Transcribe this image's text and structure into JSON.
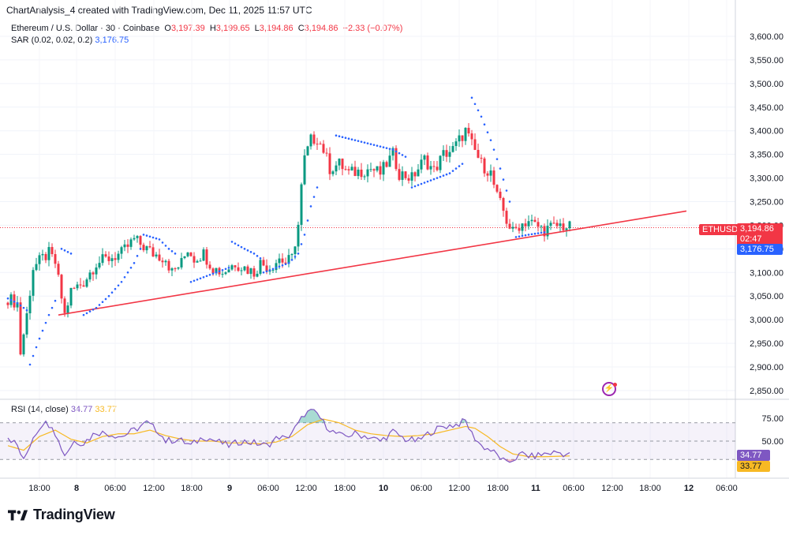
{
  "caption": "ChartAnalysis_4 created with TradingView.com, Dec 11, 2025 11:57 UTC",
  "legend": {
    "symbol": "Ethereum / U.S. Dollar · 30 · Coinbase",
    "open_label": "O",
    "open": "3,197.39",
    "high_label": "H",
    "high": "3,199.65",
    "low_label": "L",
    "low": "3,194.86",
    "close_label": "C",
    "close": "3,194.86",
    "change": "−2.33 (−0.07%)",
    "sar_label": "SAR (0.02, 0.02, 0.2)",
    "sar_value": "3,176.75"
  },
  "tags": {
    "symbol": "ETHUSD",
    "price": "3,194.86",
    "countdown": "02:47",
    "sar": "3,176.75",
    "rsi": "34.77",
    "rsi_ma": "33.77"
  },
  "rsi_legend": {
    "label": "RSI (14, close)",
    "value": "34.77",
    "ma_value": "33.77"
  },
  "brand": "TradingView",
  "colors": {
    "up": "#089981",
    "down": "#f23645",
    "sar": "#2962ff",
    "trendline": "#f23645",
    "rsi": "#7e57c2",
    "rsi_ma": "#f7b924"
  },
  "chart_data": [
    {
      "type": "candlestick",
      "title": "Ethereum / U.S. Dollar · 30 · Coinbase",
      "ylim": [
        2830,
        3630
      ],
      "y_ticks": [
        "3,600.00",
        "3,550.00",
        "3,500.00",
        "3,450.00",
        "3,400.00",
        "3,350.00",
        "3,300.00",
        "3,250.00",
        "3,200.00",
        "3,150.00",
        "3,100.00",
        "3,050.00",
        "3,000.00",
        "2,950.00",
        "2,900.00",
        "2,850.00"
      ],
      "x_ticks": [
        "18:00",
        "8",
        "06:00",
        "12:00",
        "18:00",
        "9",
        "06:00",
        "12:00",
        "18:00",
        "10",
        "06:00",
        "12:00",
        "18:00",
        "11",
        "06:00",
        "12:00",
        "18:00",
        "12",
        "06:00"
      ],
      "close_anchors": [
        [
          0,
          3045
        ],
        [
          3,
          3035
        ],
        [
          4,
          2930
        ],
        [
          6,
          3010
        ],
        [
          8,
          3110
        ],
        [
          11,
          3130
        ],
        [
          13,
          3140
        ],
        [
          15,
          3120
        ],
        [
          18,
          3010
        ],
        [
          20,
          3060
        ],
        [
          24,
          3080
        ],
        [
          28,
          3120
        ],
        [
          32,
          3130
        ],
        [
          36,
          3140
        ],
        [
          40,
          3170
        ],
        [
          44,
          3150
        ],
        [
          46,
          3140
        ],
        [
          50,
          3130
        ],
        [
          52,
          3100
        ],
        [
          55,
          3120
        ],
        [
          57,
          3150
        ],
        [
          59,
          3130
        ],
        [
          62,
          3140
        ],
        [
          65,
          3110
        ],
        [
          68,
          3100
        ],
        [
          72,
          3120
        ],
        [
          75,
          3110
        ],
        [
          78,
          3100
        ],
        [
          80,
          3120
        ],
        [
          83,
          3110
        ],
        [
          86,
          3130
        ],
        [
          88,
          3120
        ],
        [
          90,
          3130
        ],
        [
          92,
          3200
        ],
        [
          93,
          3280
        ],
        [
          94,
          3340
        ],
        [
          96,
          3380
        ],
        [
          98,
          3385
        ],
        [
          100,
          3360
        ],
        [
          102,
          3320
        ],
        [
          105,
          3330
        ],
        [
          108,
          3310
        ],
        [
          112,
          3315
        ],
        [
          115,
          3320
        ],
        [
          118,
          3310
        ],
        [
          122,
          3350
        ],
        [
          124,
          3310
        ],
        [
          128,
          3300
        ],
        [
          132,
          3340
        ],
        [
          135,
          3315
        ],
        [
          138,
          3350
        ],
        [
          141,
          3360
        ],
        [
          143,
          3380
        ],
        [
          145,
          3400
        ],
        [
          147,
          3370
        ],
        [
          150,
          3330
        ],
        [
          153,
          3310
        ],
        [
          155,
          3260
        ],
        [
          157,
          3230
        ],
        [
          158,
          3210
        ],
        [
          160,
          3185
        ],
        [
          162,
          3200
        ],
        [
          165,
          3210
        ],
        [
          167,
          3200
        ],
        [
          170,
          3190
        ],
        [
          172,
          3195
        ],
        [
          175,
          3200
        ],
        [
          178,
          3195
        ]
      ],
      "trendline": [
        [
          16,
          3010
        ],
        [
          178,
          3195
        ],
        [
          215,
          3230
        ]
      ],
      "sar_segments": [
        [
          [
            0,
            3045
          ],
          [
            3,
            3035
          ],
          [
            6,
            3020
          ]
        ],
        [
          [
            7,
            2905
          ],
          [
            10,
            2960
          ],
          [
            13,
            3010
          ],
          [
            15,
            3040
          ]
        ],
        [
          [
            17,
            3150
          ],
          [
            20,
            3140
          ]
        ],
        [
          [
            24,
            3010
          ],
          [
            28,
            3025
          ],
          [
            32,
            3050
          ],
          [
            36,
            3080
          ],
          [
            40,
            3120
          ],
          [
            42,
            3150
          ]
        ],
        [
          [
            43,
            3180
          ],
          [
            48,
            3170
          ],
          [
            51,
            3150
          ],
          [
            53,
            3140
          ]
        ],
        [
          [
            58,
            3080
          ],
          [
            62,
            3090
          ],
          [
            66,
            3100
          ],
          [
            70,
            3110
          ]
        ],
        [
          [
            71,
            3165
          ],
          [
            75,
            3150
          ],
          [
            78,
            3140
          ],
          [
            80,
            3130
          ]
        ],
        [
          [
            81,
            3100
          ],
          [
            85,
            3110
          ],
          [
            89,
            3120
          ],
          [
            92,
            3140
          ],
          [
            94,
            3180
          ],
          [
            96,
            3240
          ],
          [
            98,
            3280
          ]
        ],
        [
          [
            104,
            3390
          ],
          [
            110,
            3380
          ],
          [
            116,
            3370
          ],
          [
            122,
            3360
          ],
          [
            126,
            3345
          ]
        ],
        [
          [
            128,
            3280
          ],
          [
            134,
            3295
          ],
          [
            140,
            3310
          ],
          [
            144,
            3330
          ]
        ],
        [
          [
            147,
            3470
          ],
          [
            150,
            3430
          ],
          [
            153,
            3380
          ],
          [
            156,
            3320
          ],
          [
            159,
            3250
          ]
        ],
        [
          [
            161,
            3175
          ],
          [
            165,
            3180
          ],
          [
            170,
            3185
          ]
        ]
      ]
    },
    {
      "type": "line",
      "title": "RSI (14, close)",
      "ylim": [
        22,
        85
      ],
      "y_ticks": [
        "75.00",
        "50.00"
      ],
      "bands": [
        30,
        50,
        70
      ],
      "rsi_anchors": [
        [
          0,
          55
        ],
        [
          3,
          45
        ],
        [
          5,
          28
        ],
        [
          8,
          55
        ],
        [
          11,
          70
        ],
        [
          14,
          68
        ],
        [
          16,
          50
        ],
        [
          18,
          35
        ],
        [
          21,
          50
        ],
        [
          24,
          48
        ],
        [
          28,
          60
        ],
        [
          32,
          58
        ],
        [
          36,
          55
        ],
        [
          40,
          62
        ],
        [
          44,
          70
        ],
        [
          48,
          60
        ],
        [
          50,
          50
        ],
        [
          54,
          52
        ],
        [
          58,
          45
        ],
        [
          62,
          55
        ],
        [
          66,
          50
        ],
        [
          70,
          45
        ],
        [
          74,
          50
        ],
        [
          78,
          48
        ],
        [
          82,
          45
        ],
        [
          86,
          55
        ],
        [
          88,
          52
        ],
        [
          90,
          60
        ],
        [
          92,
          68
        ],
        [
          94,
          80
        ],
        [
          96,
          82
        ],
        [
          98,
          80
        ],
        [
          100,
          70
        ],
        [
          103,
          60
        ],
        [
          106,
          55
        ],
        [
          110,
          58
        ],
        [
          114,
          55
        ],
        [
          118,
          50
        ],
        [
          122,
          60
        ],
        [
          126,
          52
        ],
        [
          130,
          50
        ],
        [
          134,
          60
        ],
        [
          138,
          66
        ],
        [
          142,
          68
        ],
        [
          145,
          72
        ],
        [
          147,
          58
        ],
        [
          150,
          45
        ],
        [
          153,
          40
        ],
        [
          156,
          32
        ],
        [
          158,
          25
        ],
        [
          160,
          30
        ],
        [
          163,
          36
        ],
        [
          166,
          33
        ],
        [
          170,
          36
        ],
        [
          174,
          38
        ],
        [
          178,
          34.77
        ]
      ],
      "rsi_ma_anchors": [
        [
          0,
          45
        ],
        [
          5,
          40
        ],
        [
          10,
          55
        ],
        [
          15,
          62
        ],
        [
          20,
          52
        ],
        [
          25,
          48
        ],
        [
          30,
          55
        ],
        [
          35,
          58
        ],
        [
          40,
          58
        ],
        [
          45,
          62
        ],
        [
          50,
          56
        ],
        [
          55,
          52
        ],
        [
          60,
          50
        ],
        [
          65,
          50
        ],
        [
          70,
          48
        ],
        [
          75,
          48
        ],
        [
          80,
          47
        ],
        [
          85,
          49
        ],
        [
          90,
          55
        ],
        [
          95,
          68
        ],
        [
          100,
          74
        ],
        [
          105,
          70
        ],
        [
          110,
          62
        ],
        [
          115,
          58
        ],
        [
          120,
          56
        ],
        [
          125,
          55
        ],
        [
          130,
          56
        ],
        [
          135,
          58
        ],
        [
          140,
          62
        ],
        [
          145,
          66
        ],
        [
          148,
          64
        ],
        [
          152,
          55
        ],
        [
          156,
          44
        ],
        [
          160,
          36
        ],
        [
          165,
          33
        ],
        [
          170,
          33
        ],
        [
          175,
          33.5
        ],
        [
          178,
          33.77
        ]
      ]
    }
  ]
}
